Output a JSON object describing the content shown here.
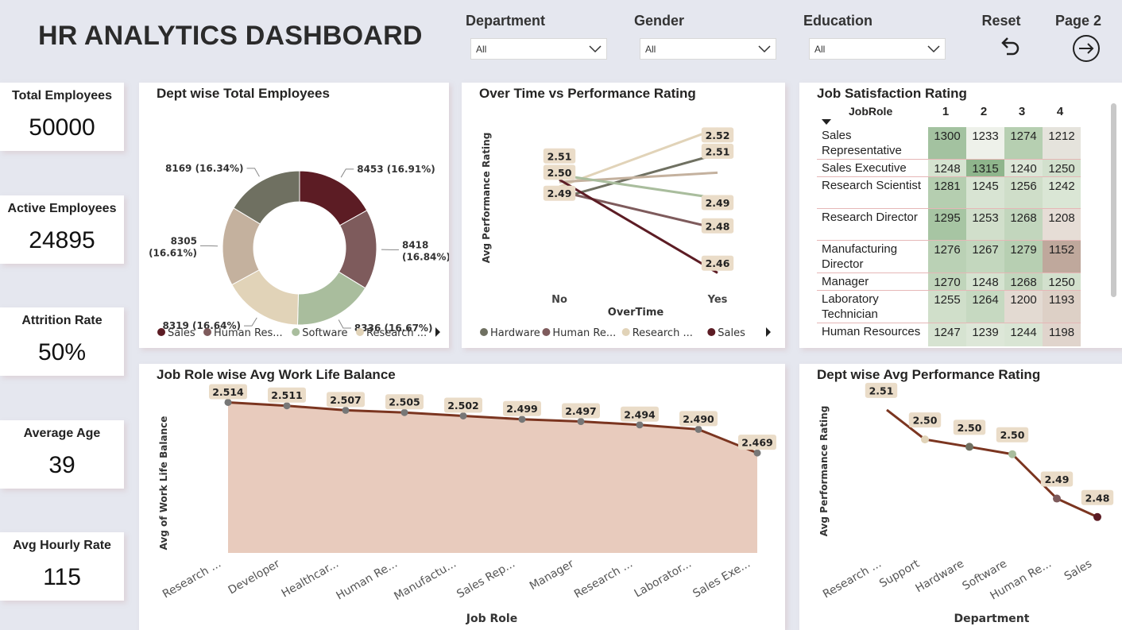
{
  "header": {
    "title": "HR ANALYTICS DASHBOARD",
    "slicers": [
      {
        "label": "Department",
        "value": "All"
      },
      {
        "label": "Gender",
        "value": "All"
      },
      {
        "label": "Education",
        "value": "All"
      }
    ],
    "reset_label": "Reset",
    "page2_label": "Page 2"
  },
  "kpis": [
    {
      "label": "Total Employees",
      "value": "50000"
    },
    {
      "label": "Active Employees",
      "value": "24895"
    },
    {
      "label": "Attrition Rate",
      "value": "50%"
    },
    {
      "label": "Average Age",
      "value": "39"
    },
    {
      "label": "Avg Hourly Rate",
      "value": "115"
    }
  ],
  "donut": {
    "title": "Dept wise Total Employees",
    "legend": [
      "Sales",
      "Human Res...",
      "Software",
      "Research ..."
    ],
    "colors": {
      "Sales": "#5c1c24",
      "Human Resources": "#7e5b5c",
      "Software": "#a9bd9d",
      "Research": "#e1d3b8",
      "Research2": "#c4b19e",
      "Hardware": "#6f7061"
    },
    "chart_data": {
      "type": "pie",
      "slices": [
        {
          "label": "Sales",
          "value": 8453,
          "text": "8453 (16.91%)"
        },
        {
          "label": "Human Resources",
          "value": 8418,
          "text": "8418",
          "text2": "(16.84%)"
        },
        {
          "label": "Software",
          "value": 8336,
          "text": "8336 (16.67%)"
        },
        {
          "label": "Research",
          "value": 8319,
          "text": "8319 (16.64%)"
        },
        {
          "label": "Research2",
          "value": 8305,
          "text": "8305",
          "text2": "(16.61%)"
        },
        {
          "label": "Hardware",
          "value": 8169,
          "text": "8169 (16.34%)"
        }
      ]
    }
  },
  "overtime": {
    "title": "Over Time vs Performance Rating",
    "ylabel": "Avg Performance Rating",
    "xlabel": "OverTime",
    "legend": [
      "Hardware",
      "Human Re...",
      "Research ...",
      "Sales"
    ],
    "chart_data": {
      "type": "line",
      "x": [
        "No",
        "Yes"
      ],
      "series": [
        {
          "name": "Hardware",
          "values": [
            2.494,
            2.513
          ],
          "color": "#6f7061"
        },
        {
          "name": "Human Re...",
          "values": [
            2.497,
            2.481
          ],
          "color": "#7e5b5c"
        },
        {
          "name": "Research ...",
          "values": [
            2.499,
            2.524
          ],
          "color": "#e1d3b8"
        },
        {
          "name": "Research2",
          "values": [
            2.501,
            2.505
          ],
          "color": "#c4b19e"
        },
        {
          "name": "Software",
          "values": [
            2.504,
            2.494
          ],
          "color": "#a9bd9d"
        },
        {
          "name": "Sales",
          "values": [
            2.502,
            2.462
          ],
          "color": "#5c1c24"
        }
      ],
      "labels_left": [
        {
          "text": "2.51",
          "value": 2.512
        },
        {
          "text": "2.50",
          "value": 2.505
        },
        {
          "text": "2.49",
          "value": 2.496
        }
      ],
      "labels_right": [
        {
          "text": "2.52",
          "value": 2.521
        },
        {
          "text": "2.51",
          "value": 2.514
        },
        {
          "text": "2.49",
          "value": 2.492
        },
        {
          "text": "2.48",
          "value": 2.482
        },
        {
          "text": "2.46",
          "value": 2.466
        }
      ],
      "ylim": [
        2.455,
        2.53
      ]
    }
  },
  "satisfaction": {
    "title": "Job Satisfaction Rating",
    "header_role": "JobRole",
    "columns": [
      "1",
      "2",
      "3",
      "4"
    ],
    "rows": [
      {
        "role": "Sales Representative",
        "values": [
          "1300",
          "1233",
          "1274",
          "1212"
        ],
        "colors": [
          "#a3c2a0",
          "#eef1ea",
          "#b6cfb1",
          "#e5e3dc"
        ]
      },
      {
        "role": "Sales Executive",
        "values": [
          "1248",
          "1315",
          "1240",
          "1250"
        ],
        "colors": [
          "#d5e3d0",
          "#8fb58c",
          "#dce6d7",
          "#d2e0cd"
        ]
      },
      {
        "role": "Research Scientist",
        "values": [
          "1281",
          "1245",
          "1256",
          "1242"
        ],
        "colors": [
          "#b5ceb0",
          "#d8e4d3",
          "#cfdec9",
          "#dae6d5"
        ]
      },
      {
        "role": "Research Director",
        "values": [
          "1295",
          "1253",
          "1268",
          "1208"
        ],
        "colors": [
          "#a7c5a3",
          "#d1dfcb",
          "#c2d6bd",
          "#e6ddd6"
        ]
      },
      {
        "role": "Manufacturing Director",
        "values": [
          "1276",
          "1267",
          "1279",
          "1152"
        ],
        "colors": [
          "#bad1b5",
          "#c3d7be",
          "#b7cfb2",
          "#bfa89c"
        ]
      },
      {
        "role": "Manager",
        "values": [
          "1270",
          "1248",
          "1268",
          "1250"
        ],
        "colors": [
          "#c0d5bb",
          "#d5e3d0",
          "#c2d6bd",
          "#d2e0cd"
        ]
      },
      {
        "role": "Laboratory Technician",
        "values": [
          "1255",
          "1264",
          "1200",
          "1193"
        ],
        "colors": [
          "#d0dfca",
          "#c6d9c1",
          "#e3dad2",
          "#ddd0c6"
        ]
      },
      {
        "role": "Human Resources",
        "values": [
          "1247",
          "1239",
          "1244",
          "1198"
        ],
        "colors": [
          "#d6e3d1",
          "#dde7d8",
          "#d9e5d4",
          "#e0d4cc"
        ]
      }
    ]
  },
  "worklife": {
    "title": "Job Role wise Avg Work Life Balance",
    "ylabel": "Avg of Work Life Balance",
    "xlabel": "Job Role",
    "chart_data": {
      "type": "area",
      "categories": [
        "Research ...",
        "Developer",
        "Healthcar...",
        "Human Re...",
        "Manufactu...",
        "Sales Rep...",
        "Manager",
        "Research ...",
        "Laborator...",
        "Sales Exe..."
      ],
      "values": [
        2.514,
        2.511,
        2.507,
        2.505,
        2.502,
        2.499,
        2.497,
        2.494,
        2.49,
        2.469
      ],
      "labels": [
        "2.514",
        "2.511",
        "2.507",
        "2.505",
        "2.502",
        "2.499",
        "2.497",
        "2.494",
        "2.490",
        "2.469"
      ]
    }
  },
  "deptperf": {
    "title": "Dept wise Avg Performance Rating",
    "ylabel": "Avg Performance Rating",
    "xlabel": "Department",
    "chart_data": {
      "type": "line",
      "categories": [
        "Research ...",
        "Support",
        "Hardware",
        "Software",
        "Human Re...",
        "Sales"
      ],
      "values": [
        2.512,
        2.504,
        2.502,
        2.5,
        2.488,
        2.483
      ],
      "labels": [
        "2.51",
        "2.50",
        "2.50",
        "2.50",
        "2.49",
        "2.48"
      ],
      "marker_colors": [
        "#c4b19e",
        "#e1d3b8",
        "#6f7061",
        "#a9bd9d",
        "#7e5b5c",
        "#5c1c24"
      ]
    }
  }
}
